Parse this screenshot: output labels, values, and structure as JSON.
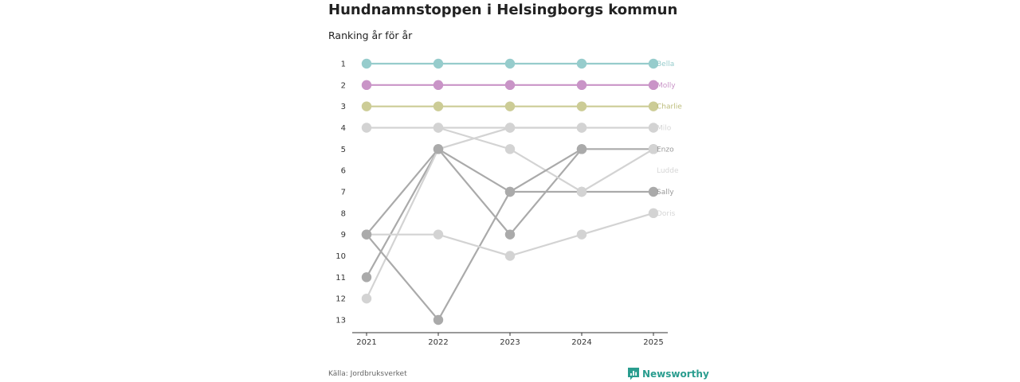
{
  "header": {
    "title": "Hundnamnstoppen i Helsingborgs kommun",
    "subtitle": "Ranking år för år"
  },
  "footer": {
    "source": "Källa: Jordbruksverket",
    "brand": "Newsworthy"
  },
  "chart_data": {
    "type": "line",
    "title": "Hundnamnstoppen i Helsingborgs kommun",
    "subtitle": "Ranking år för år",
    "x": [
      "2021",
      "2022",
      "2023",
      "2024",
      "2025"
    ],
    "y_ticks": [
      "1",
      "2",
      "3",
      "4",
      "5",
      "6",
      "7",
      "8",
      "9",
      "10",
      "11",
      "12",
      "13"
    ],
    "ylim": [
      1,
      13
    ],
    "y_inverted": true,
    "series": [
      {
        "name": "Bella",
        "values": [
          1,
          1,
          1,
          1,
          1
        ],
        "color": "#96cccc",
        "label_color": "#96cccc"
      },
      {
        "name": "Molly",
        "values": [
          2,
          2,
          2,
          2,
          2
        ],
        "color": "#c994c7",
        "label_color": "#c994c7"
      },
      {
        "name": "Charlie",
        "values": [
          3,
          3,
          3,
          3,
          3
        ],
        "color": "#cccc96",
        "label_color": "#bcbc7a"
      },
      {
        "name": "Milo",
        "values": [
          4,
          4,
          4,
          4,
          4
        ],
        "color": "#d3d3d3",
        "label_color": "#d6d6d6"
      },
      {
        "name": "Enzo",
        "values": [
          11,
          5,
          9,
          5,
          5
        ],
        "color": "#aaaaaa",
        "label_color": "#999999"
      },
      {
        "name": "Ludde",
        "values": [
          12,
          5,
          4,
          4,
          null
        ],
        "color": "#d3d3d3",
        "label_color": "#d6d6d6",
        "label_rank": 6
      },
      {
        "name": "Sally",
        "values": [
          9,
          13,
          7,
          7,
          7
        ],
        "color": "#aaaaaa",
        "label_color": "#999999"
      },
      {
        "name": "Doris",
        "values": [
          9,
          9,
          10,
          9,
          8
        ],
        "color": "#d3d3d3",
        "label_color": "#d6d6d6"
      },
      {
        "name": "",
        "values": [
          null,
          4,
          5,
          7,
          5
        ],
        "color": "#d3d3d3"
      },
      {
        "name": "",
        "values": [
          9,
          5,
          7,
          5,
          null
        ],
        "color": "#aaaaaa"
      }
    ]
  }
}
